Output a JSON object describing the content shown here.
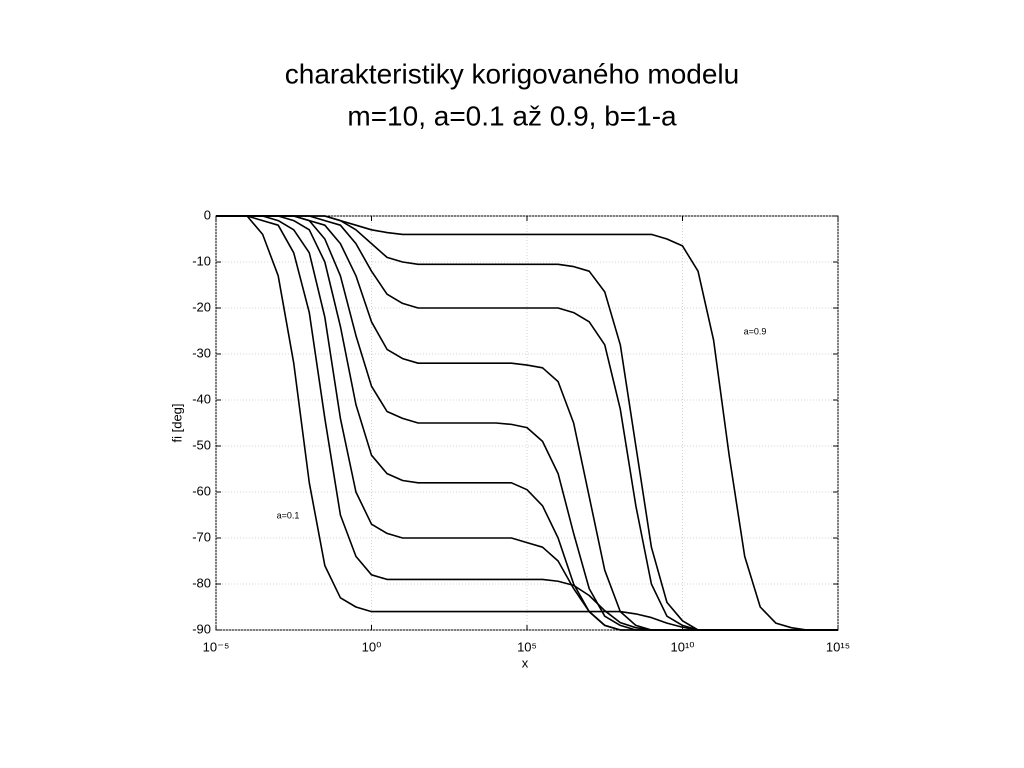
{
  "chart_data": {
    "type": "line",
    "title": "charakteristiky korigovaného modelu",
    "subtitle": "m=10, a=0.1 až 0.9, b=1-a",
    "xlabel": "x",
    "ylabel": "fi [deg]",
    "xscale": "log",
    "grid": true,
    "annotations": [
      "a=0.9",
      "a=0.1"
    ],
    "xlim": [
      1e-05,
      1000000000000000.0
    ],
    "ylim": [
      -90,
      0
    ],
    "xticks": [
      {
        "value": 1e-05,
        "label": "10⁻⁵"
      },
      {
        "value": 1,
        "label": "10⁰"
      },
      {
        "value": 100000.0,
        "label": "10⁵"
      },
      {
        "value": 10000000000.0,
        "label": "10¹⁰"
      },
      {
        "value": 1000000000000000.0,
        "label": "10¹⁵"
      }
    ],
    "yticks": [
      0,
      -10,
      -20,
      -30,
      -40,
      -50,
      -60,
      -70,
      -80,
      -90
    ],
    "x": [
      1e-05,
      3.16e-05,
      0.0001,
      0.000316,
      0.001,
      0.00316,
      0.01,
      0.0316,
      0.1,
      0.316,
      1,
      3.16,
      10,
      31.6,
      100,
      316,
      1000,
      3160,
      10000,
      31600,
      100000,
      316000,
      1000000.0,
      3160000.0,
      10000000.0,
      31600000.0,
      100000000.0,
      316000000.0,
      1000000000.0,
      3160000000.0,
      10000000000.0,
      31600000000.0,
      100000000000.0,
      316000000000.0,
      1000000000000.0,
      3160000000000.0,
      10000000000000.0,
      31600000000000.0,
      100000000000000.0,
      316000000000000.0,
      1000000000000000.0
    ],
    "series": [
      {
        "color": "#000000",
        "values": [
          0,
          0,
          0,
          -4,
          -13,
          -32,
          -58,
          -76,
          -83,
          -85,
          -86,
          -86,
          -86,
          -86,
          -86,
          -86,
          -86,
          -86,
          -86,
          -86,
          -86,
          -86,
          -86,
          -86,
          -86,
          -86,
          -86,
          -86.5,
          -87.3,
          -88.5,
          -89.4,
          -90,
          -90,
          -90,
          -90,
          -90,
          -90,
          -90,
          -90,
          -90,
          -90
        ]
      },
      {
        "color": "#000000",
        "values": [
          0,
          0,
          0,
          -1,
          -2,
          -8,
          -21,
          -44,
          -65,
          -74,
          -78,
          -79,
          -79,
          -79,
          -79,
          -79,
          -79,
          -79,
          -79,
          -79,
          -79,
          -79,
          -79.4,
          -80.3,
          -82.5,
          -85.8,
          -88.4,
          -89.5,
          -90,
          -90,
          -90,
          -90,
          -90,
          -90,
          -90,
          -90,
          -90,
          -90,
          -90,
          -90,
          -90
        ]
      },
      {
        "color": "#000000",
        "values": [
          0,
          0,
          0,
          0,
          -1,
          -3,
          -8,
          -22,
          -44,
          -60,
          -67,
          -69,
          -70,
          -70,
          -70,
          -70,
          -70,
          -70,
          -70,
          -70,
          -71,
          -72,
          -75,
          -81,
          -86,
          -89,
          -90,
          -90,
          -90,
          -90,
          -90,
          -90,
          -90,
          -90,
          -90,
          -90,
          -90,
          -90,
          -90,
          -90,
          -90
        ]
      },
      {
        "color": "#000000",
        "values": [
          0,
          0,
          0,
          0,
          0,
          -1,
          -3,
          -10,
          -24,
          -41,
          -52,
          -56,
          -57.5,
          -58,
          -58,
          -58,
          -58,
          -58,
          -58,
          -58,
          -59.5,
          -63,
          -70,
          -80,
          -86,
          -89,
          -90,
          -90,
          -90,
          -90,
          -90,
          -90,
          -90,
          -90,
          -90,
          -90,
          -90,
          -90,
          -90,
          -90,
          -90
        ]
      },
      {
        "color": "#000000",
        "values": [
          0,
          0,
          0,
          0,
          0,
          0,
          -1,
          -5,
          -13,
          -26,
          -37,
          -42.5,
          -44,
          -45,
          -45,
          -45,
          -45,
          -45,
          -45,
          -45.3,
          -46,
          -49,
          -56,
          -69,
          -81,
          -87,
          -89,
          -90,
          -90,
          -90,
          -90,
          -90,
          -90,
          -90,
          -90,
          -90,
          -90,
          -90,
          -90,
          -90,
          -90
        ]
      },
      {
        "color": "#000000",
        "values": [
          0,
          0,
          0,
          0,
          0,
          0,
          -1,
          -2,
          -6,
          -13,
          -23,
          -29,
          -31,
          -32,
          -32,
          -32,
          -32,
          -32,
          -32,
          -32,
          -32.4,
          -33,
          -36,
          -45,
          -61,
          -77,
          -86,
          -89,
          -90,
          -90,
          -90,
          -90,
          -90,
          -90,
          -90,
          -90,
          -90,
          -90,
          -90,
          -90,
          -90
        ]
      },
      {
        "color": "#000000",
        "values": [
          0,
          0,
          0,
          0,
          0,
          0,
          0,
          -1,
          -2,
          -6,
          -12,
          -17,
          -19,
          -20,
          -20,
          -20,
          -20,
          -20,
          -20,
          -20,
          -20,
          -20,
          -20,
          -21,
          -23,
          -28,
          -42,
          -63,
          -80,
          -87,
          -89,
          -90,
          -90,
          -90,
          -90,
          -90,
          -90,
          -90,
          -90,
          -90,
          -90
        ]
      },
      {
        "color": "#000000",
        "values": [
          0,
          0,
          0,
          0,
          0,
          0,
          0,
          0,
          -1,
          -3,
          -6,
          -9,
          -10,
          -10.5,
          -10.5,
          -10.5,
          -10.5,
          -10.5,
          -10.5,
          -10.5,
          -10.5,
          -10.5,
          -10.5,
          -11,
          -12,
          -16.5,
          -28,
          -50,
          -72,
          -84,
          -88,
          -90,
          -90,
          -90,
          -90,
          -90,
          -90,
          -90,
          -90,
          -90,
          -90
        ]
      },
      {
        "color": "#000000",
        "values": [
          0,
          0,
          0,
          0,
          0,
          0,
          0,
          0,
          -1,
          -2,
          -3,
          -3.6,
          -4,
          -4,
          -4,
          -4,
          -4,
          -4,
          -4,
          -4,
          -4,
          -4,
          -4,
          -4,
          -4,
          -4,
          -4,
          -4,
          -4,
          -5,
          -6.5,
          -12,
          -27,
          -52,
          -74,
          -85,
          -88.5,
          -89.5,
          -90,
          -90,
          -90
        ]
      }
    ]
  }
}
